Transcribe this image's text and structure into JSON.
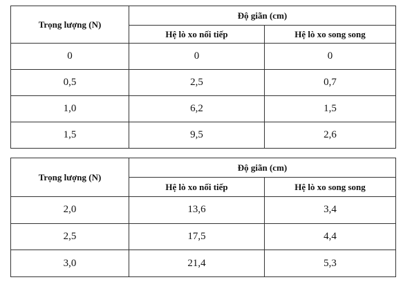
{
  "tables": [
    {
      "header": {
        "weight": "Trọng lượng (N)",
        "group": "Độ giãn (cm)",
        "sub": [
          "Hệ lò xo nối tiếp",
          "Hệ lò xo song song"
        ]
      },
      "rows": [
        [
          "0",
          "0",
          "0"
        ],
        [
          "0,5",
          "2,5",
          "0,7"
        ],
        [
          "1,0",
          "6,2",
          "1,5"
        ],
        [
          "1,5",
          "9,5",
          "2,6"
        ]
      ]
    },
    {
      "header": {
        "weight": "Trọng lượng (N)",
        "group": "Độ giãn (cm)",
        "sub": [
          "Hệ lò xo nối tiếp",
          "Hệ lò xo song song"
        ]
      },
      "rows": [
        [
          "2,0",
          "13,6",
          "3,4"
        ],
        [
          "2,5",
          "17,5",
          "4,4"
        ],
        [
          "3,0",
          "21,4",
          "5,3"
        ]
      ]
    }
  ]
}
